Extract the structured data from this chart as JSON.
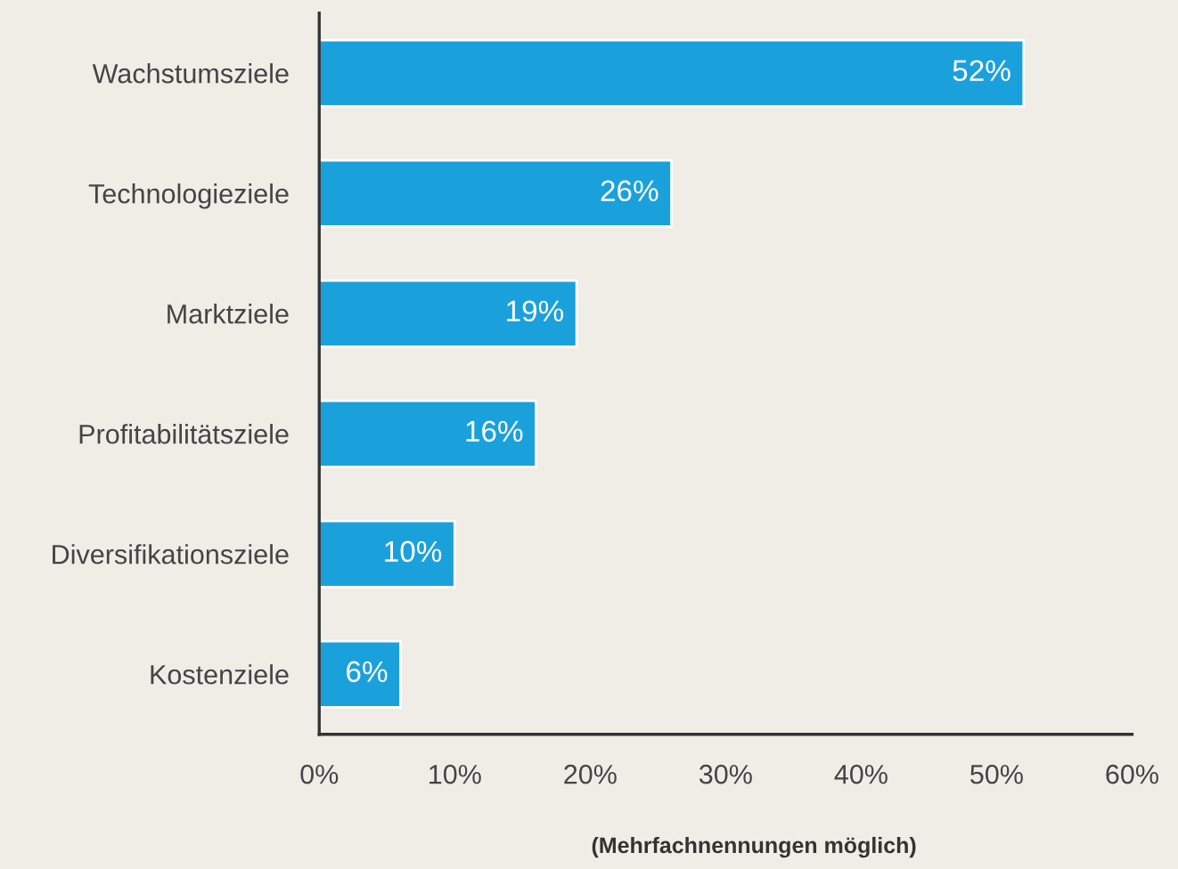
{
  "chart_data": {
    "type": "bar",
    "orientation": "horizontal",
    "categories": [
      "Wachstumsziele",
      "Technologieziele",
      "Marktziele",
      "Profitabilitätsziele",
      "Diversifikationsziele",
      "Kostenziele"
    ],
    "values": [
      52,
      26,
      19,
      16,
      10,
      6
    ],
    "value_labels": [
      "52%",
      "26%",
      "19%",
      "16%",
      "10%",
      "6%"
    ],
    "color": "#1aa1dc",
    "xlim": [
      0,
      60
    ],
    "xticks": [
      {
        "value": 0,
        "label": "0%"
      },
      {
        "value": 10,
        "label": "10%"
      },
      {
        "value": 20,
        "label": "20%"
      },
      {
        "value": 30,
        "label": "30%"
      },
      {
        "value": 40,
        "label": "40%"
      },
      {
        "value": 50,
        "label": "50%"
      },
      {
        "value": 60,
        "label": "60%"
      }
    ],
    "annotations": [
      "(Mehrfachnennungen möglich)"
    ],
    "grid": false,
    "legend": false
  }
}
